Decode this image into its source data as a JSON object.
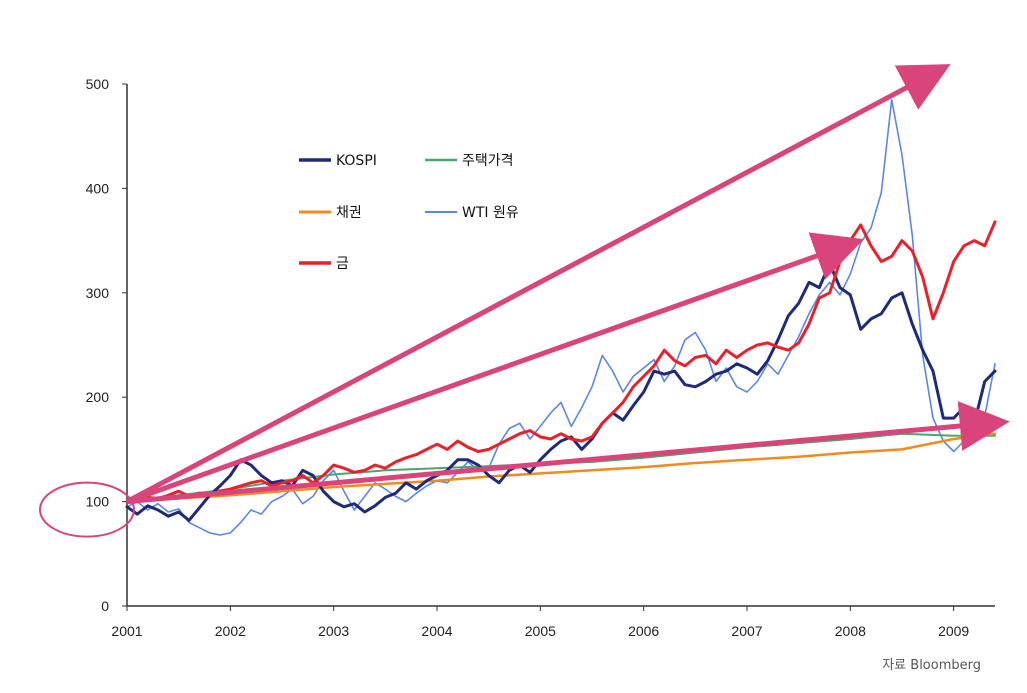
{
  "chart_data": {
    "type": "line",
    "title": "",
    "xlabel": "",
    "ylabel": "",
    "ylim": [
      0,
      500
    ],
    "xlim": [
      2001,
      2009.4
    ],
    "yticks": [
      "0",
      "100",
      "200",
      "300",
      "400",
      "500"
    ],
    "xticks": [
      "2001",
      "2002",
      "2003",
      "2004",
      "2005",
      "2006",
      "2007",
      "2008",
      "2009"
    ],
    "legend": "top-left",
    "series": [
      {
        "name": "KOSPI",
        "color": "#1f2a7a",
        "x": [
          2001.0,
          2001.1,
          2001.2,
          2001.3,
          2001.4,
          2001.5,
          2001.6,
          2001.7,
          2001.8,
          2001.9,
          2002.0,
          2002.1,
          2002.2,
          2002.3,
          2002.4,
          2002.5,
          2002.6,
          2002.7,
          2002.8,
          2002.9,
          2003.0,
          2003.1,
          2003.2,
          2003.3,
          2003.4,
          2003.5,
          2003.6,
          2003.7,
          2003.8,
          2003.9,
          2004.0,
          2004.1,
          2004.2,
          2004.3,
          2004.4,
          2004.5,
          2004.6,
          2004.7,
          2004.8,
          2004.9,
          2005.0,
          2005.1,
          2005.2,
          2005.3,
          2005.4,
          2005.5,
          2005.6,
          2005.7,
          2005.8,
          2005.9,
          2006.0,
          2006.1,
          2006.2,
          2006.3,
          2006.4,
          2006.5,
          2006.6,
          2006.7,
          2006.8,
          2006.9,
          2007.0,
          2007.1,
          2007.2,
          2007.3,
          2007.4,
          2007.5,
          2007.6,
          2007.7,
          2007.8,
          2007.9,
          2008.0,
          2008.1,
          2008.2,
          2008.3,
          2008.4,
          2008.5,
          2008.6,
          2008.7,
          2008.8,
          2008.9,
          2009.0,
          2009.1,
          2009.2,
          2009.3,
          2009.4
        ],
        "values": [
          95,
          88,
          96,
          92,
          86,
          90,
          82,
          94,
          106,
          115,
          125,
          140,
          135,
          125,
          118,
          120,
          115,
          130,
          125,
          110,
          100,
          95,
          98,
          90,
          96,
          104,
          108,
          118,
          112,
          120,
          125,
          130,
          140,
          140,
          135,
          125,
          118,
          130,
          135,
          128,
          140,
          150,
          158,
          162,
          150,
          160,
          175,
          185,
          178,
          192,
          205,
          225,
          222,
          225,
          212,
          210,
          215,
          222,
          225,
          232,
          228,
          222,
          235,
          255,
          278,
          290,
          310,
          305,
          328,
          305,
          298,
          265,
          275,
          280,
          295,
          300,
          270,
          245,
          225,
          180,
          180,
          190,
          175,
          215,
          225
        ]
      },
      {
        "name": "주택가격",
        "color": "#4aa56e",
        "x": [
          2001.0,
          2001.5,
          2002.0,
          2002.5,
          2003.0,
          2003.5,
          2004.0,
          2004.5,
          2005.0,
          2005.5,
          2006.0,
          2006.5,
          2007.0,
          2007.5,
          2008.0,
          2008.5,
          2009.0,
          2009.4
        ],
        "values": [
          100,
          106,
          112,
          120,
          126,
          130,
          132,
          134,
          136,
          138,
          142,
          147,
          152,
          156,
          160,
          165,
          163,
          163
        ]
      },
      {
        "name": "채권",
        "color": "#f28a1c",
        "x": [
          2001.0,
          2001.5,
          2002.0,
          2002.5,
          2003.0,
          2003.5,
          2004.0,
          2004.5,
          2005.0,
          2005.5,
          2006.0,
          2006.5,
          2007.0,
          2007.5,
          2008.0,
          2008.5,
          2009.0,
          2009.4
        ],
        "values": [
          100,
          103,
          106,
          110,
          114,
          117,
          120,
          124,
          127,
          130,
          133,
          137,
          140,
          143,
          147,
          150,
          160,
          165
        ]
      },
      {
        "name": "WTI 원유",
        "color": "#5b87e6",
        "x": [
          2001.0,
          2001.1,
          2001.2,
          2001.3,
          2001.4,
          2001.5,
          2001.6,
          2001.7,
          2001.8,
          2001.9,
          2002.0,
          2002.1,
          2002.2,
          2002.3,
          2002.4,
          2002.5,
          2002.6,
          2002.7,
          2002.8,
          2002.9,
          2003.0,
          2003.1,
          2003.2,
          2003.3,
          2003.4,
          2003.5,
          2003.6,
          2003.7,
          2003.8,
          2003.9,
          2004.0,
          2004.1,
          2004.2,
          2004.3,
          2004.4,
          2004.5,
          2004.6,
          2004.7,
          2004.8,
          2004.9,
          2005.0,
          2005.1,
          2005.2,
          2005.3,
          2005.4,
          2005.5,
          2005.6,
          2005.7,
          2005.8,
          2005.9,
          2006.0,
          2006.1,
          2006.2,
          2006.3,
          2006.4,
          2006.5,
          2006.6,
          2006.7,
          2006.8,
          2006.9,
          2007.0,
          2007.1,
          2007.2,
          2007.3,
          2007.4,
          2007.5,
          2007.6,
          2007.7,
          2007.8,
          2007.9,
          2008.0,
          2008.1,
          2008.2,
          2008.3,
          2008.4,
          2008.5,
          2008.6,
          2008.7,
          2008.8,
          2008.9,
          2009.0,
          2009.1,
          2009.2,
          2009.3,
          2009.4
        ],
        "values": [
          95,
          100,
          92,
          98,
          90,
          93,
          80,
          75,
          70,
          68,
          70,
          80,
          92,
          88,
          100,
          105,
          112,
          98,
          105,
          120,
          130,
          110,
          92,
          105,
          118,
          112,
          105,
          100,
          108,
          115,
          120,
          118,
          128,
          138,
          130,
          132,
          155,
          170,
          175,
          160,
          172,
          185,
          195,
          172,
          190,
          210,
          240,
          225,
          205,
          220,
          228,
          236,
          215,
          230,
          255,
          262,
          245,
          215,
          228,
          210,
          205,
          215,
          232,
          222,
          240,
          258,
          280,
          298,
          310,
          298,
          318,
          348,
          362,
          396,
          485,
          432,
          355,
          240,
          180,
          158,
          148,
          158,
          185,
          182,
          232
        ]
      },
      {
        "name": "금",
        "color": "#e8212b",
        "x": [
          2001.0,
          2001.1,
          2001.2,
          2001.3,
          2001.4,
          2001.5,
          2001.6,
          2001.7,
          2001.8,
          2001.9,
          2002.0,
          2002.1,
          2002.2,
          2002.3,
          2002.4,
          2002.5,
          2002.6,
          2002.7,
          2002.8,
          2002.9,
          2003.0,
          2003.1,
          2003.2,
          2003.3,
          2003.4,
          2003.5,
          2003.6,
          2003.7,
          2003.8,
          2003.9,
          2004.0,
          2004.1,
          2004.2,
          2004.3,
          2004.4,
          2004.5,
          2004.6,
          2004.7,
          2004.8,
          2004.9,
          2005.0,
          2005.1,
          2005.2,
          2005.3,
          2005.4,
          2005.5,
          2005.6,
          2005.7,
          2005.8,
          2005.9,
          2006.0,
          2006.1,
          2006.2,
          2006.3,
          2006.4,
          2006.5,
          2006.6,
          2006.7,
          2006.8,
          2006.9,
          2007.0,
          2007.1,
          2007.2,
          2007.3,
          2007.4,
          2007.5,
          2007.6,
          2007.7,
          2007.8,
          2007.9,
          2008.0,
          2008.1,
          2008.2,
          2008.3,
          2008.4,
          2008.5,
          2008.6,
          2008.7,
          2008.8,
          2008.9,
          2009.0,
          2009.1,
          2009.2,
          2009.3,
          2009.4
        ],
        "values": [
          100,
          102,
          104,
          103,
          106,
          110,
          105,
          108,
          106,
          110,
          112,
          115,
          118,
          120,
          115,
          118,
          120,
          125,
          118,
          125,
          135,
          132,
          128,
          130,
          135,
          132,
          138,
          142,
          145,
          150,
          155,
          150,
          158,
          152,
          148,
          150,
          155,
          160,
          165,
          168,
          162,
          160,
          165,
          160,
          158,
          162,
          175,
          185,
          195,
          210,
          220,
          230,
          245,
          235,
          230,
          238,
          240,
          232,
          245,
          238,
          245,
          250,
          252,
          248,
          245,
          252,
          270,
          295,
          300,
          330,
          350,
          365,
          345,
          330,
          335,
          350,
          340,
          315,
          275,
          300,
          330,
          345,
          350,
          345,
          368
        ]
      }
    ],
    "annotations": {
      "arrows": [
        {
          "from": [
            2001.0,
            100
          ],
          "to": [
            2008.8,
            510
          ]
        },
        {
          "from": [
            2001.0,
            100
          ],
          "to": [
            2007.95,
            345
          ]
        },
        {
          "from": [
            2001.0,
            100
          ],
          "to": [
            2009.35,
            175
          ]
        }
      ],
      "circle_at": [
        2001.0,
        100
      ]
    }
  },
  "source": "자료 Bloomberg",
  "colors": {
    "arrow": "#d9447a",
    "axis": "#333333"
  }
}
